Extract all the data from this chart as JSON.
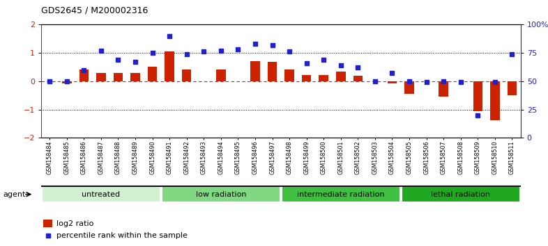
{
  "title": "GDS2645 / M200002316",
  "samples": [
    "GSM158484",
    "GSM158485",
    "GSM158486",
    "GSM158487",
    "GSM158488",
    "GSM158489",
    "GSM158490",
    "GSM158491",
    "GSM158492",
    "GSM158493",
    "GSM158494",
    "GSM158495",
    "GSM158496",
    "GSM158497",
    "GSM158498",
    "GSM158499",
    "GSM158500",
    "GSM158501",
    "GSM158502",
    "GSM158503",
    "GSM158504",
    "GSM158505",
    "GSM158506",
    "GSM158507",
    "GSM158508",
    "GSM158509",
    "GSM158510",
    "GSM158511"
  ],
  "log2_ratio": [
    0.0,
    -0.07,
    0.42,
    0.28,
    0.3,
    0.28,
    0.5,
    1.05,
    0.42,
    0.0,
    0.42,
    0.0,
    0.72,
    0.68,
    0.42,
    0.22,
    0.22,
    0.35,
    0.18,
    0.0,
    -0.08,
    -0.45,
    0.0,
    -0.55,
    0.0,
    -1.05,
    -1.38,
    -0.5
  ],
  "percentile_rank": [
    50,
    50,
    60,
    77,
    69,
    67,
    75,
    90,
    74,
    76,
    77,
    78,
    83,
    82,
    76,
    66,
    69,
    64,
    62,
    50,
    57,
    50,
    49,
    50,
    49,
    20,
    49,
    74
  ],
  "groups": [
    {
      "label": "untreated",
      "start": 0,
      "end": 6,
      "color": "#d0f0d0"
    },
    {
      "label": "low radiation",
      "start": 7,
      "end": 13,
      "color": "#80d880"
    },
    {
      "label": "intermediate radiation",
      "start": 14,
      "end": 20,
      "color": "#40c040"
    },
    {
      "label": "lethal radiation",
      "start": 21,
      "end": 27,
      "color": "#20a820"
    }
  ],
  "bar_color": "#cc2200",
  "dot_color": "#2020cc",
  "ylim": [
    -2,
    2
  ],
  "y2lim": [
    0,
    100
  ],
  "yticks": [
    -2,
    -1,
    0,
    1,
    2
  ],
  "y2ticks": [
    0,
    25,
    50,
    75,
    100
  ],
  "y2ticklabels": [
    "0",
    "25",
    "50",
    "75",
    "100%"
  ],
  "background_color": "#ffffff",
  "agent_label": "agent",
  "legend_items": [
    {
      "label": "log2 ratio",
      "color": "#cc2200"
    },
    {
      "label": "percentile rank within the sample",
      "color": "#2020cc"
    }
  ]
}
